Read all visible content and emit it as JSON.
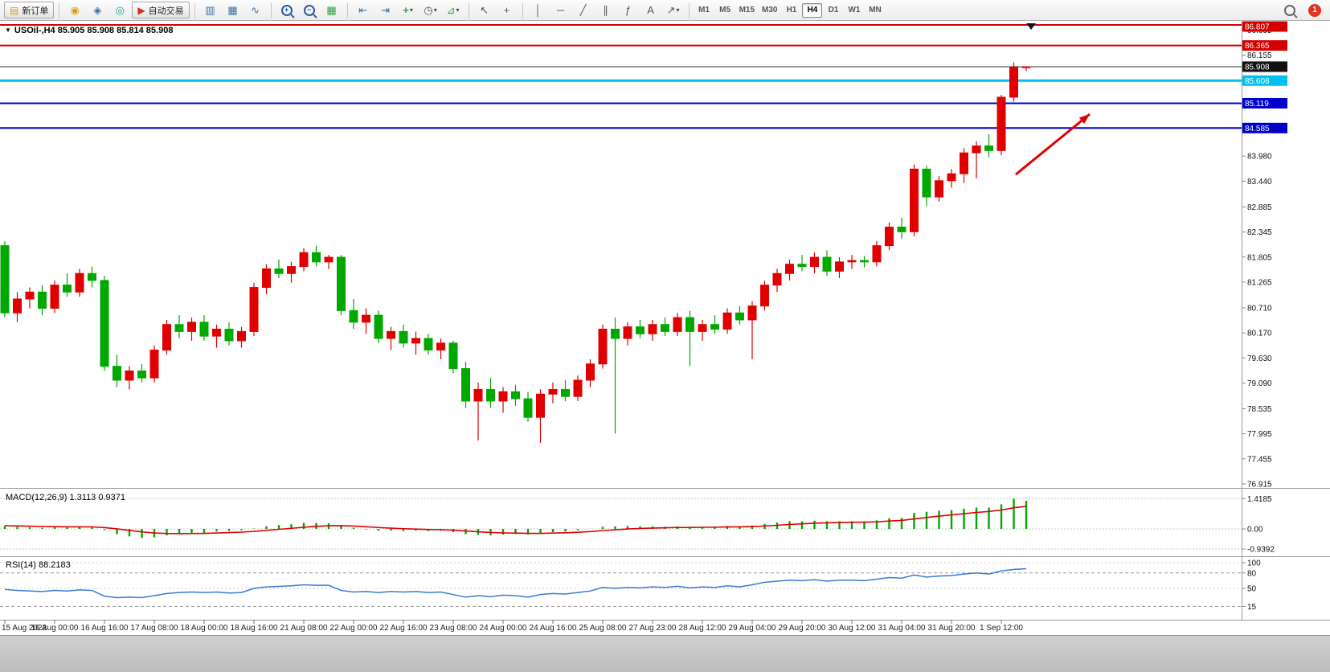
{
  "toolbar": {
    "new_order": "新订单",
    "autotrading": "自动交易",
    "timeframes": [
      "M1",
      "M5",
      "M15",
      "M30",
      "H1",
      "H4",
      "D1",
      "W1",
      "MN"
    ],
    "active_timeframe": "H4",
    "notification_count": "1"
  },
  "icons": {
    "new_order": "▤",
    "metaquotes": "◉",
    "charts_panel": "◈",
    "signals": "◎",
    "autotrading": "▶",
    "chart_bars": "▥",
    "chart_candles": "▦",
    "chart_line": "∿",
    "zoom_in": "+",
    "zoom_out": "−",
    "grid": "▦",
    "auto_scroll": "⇥",
    "chart_shift": "⇤",
    "new_chart": "+",
    "periods": "◷",
    "indicators": "⊿",
    "dropdown": "▾",
    "cursor": "↖",
    "crosshair": "+",
    "vline": "│",
    "hline": "─",
    "trendline": "╱",
    "channel": "∥",
    "fibonacci": "ƒ",
    "text_tool": "A",
    "arrows_tool": "↗",
    "marker": "▼"
  },
  "chart": {
    "symbol_title": "USOil-,H4 85.905 85.908 85.814 85.908",
    "current_price": "85.908"
  },
  "chart_data": {
    "type": "candlestick",
    "symbol": "USOil-",
    "timeframe": "H4",
    "ohlc_current": [
      85.905,
      85.908,
      85.814,
      85.908
    ],
    "ylim": [
      76.88,
      86.86
    ],
    "up_color": "#e00000",
    "down_color": "#00a800",
    "price_axis_labels": [
      "86.695",
      "86.155",
      "85.615",
      "85.075",
      "84.535",
      "83.980",
      "83.440",
      "82.885",
      "82.345",
      "81.805",
      "81.265",
      "80.710",
      "80.170",
      "79.630",
      "79.090",
      "78.535",
      "77.995",
      "77.455",
      "76.915"
    ],
    "hlines": [
      {
        "price": 86.807,
        "label": "86.807",
        "color": "#d40000",
        "width": 2
      },
      {
        "price": 86.365,
        "label": "86.365",
        "color": "#d40000",
        "width": 2
      },
      {
        "price": 85.908,
        "label": "85.908",
        "color": "#333333",
        "width": 1,
        "box": "#111111"
      },
      {
        "price": 85.608,
        "label": "85.608",
        "color": "#00c0f0",
        "width": 3
      },
      {
        "price": 85.119,
        "label": "85.119",
        "color": "#0000cc",
        "width": 2
      },
      {
        "price": 84.585,
        "label": "84.585",
        "color": "#0000cc",
        "width": 2
      }
    ],
    "candles": [
      [
        82.05,
        82.15,
        80.5,
        80.6
      ],
      [
        80.6,
        81.05,
        80.4,
        80.9
      ],
      [
        80.9,
        81.15,
        80.7,
        81.05
      ],
      [
        81.05,
        81.2,
        80.55,
        80.7
      ],
      [
        80.7,
        81.3,
        80.6,
        81.2
      ],
      [
        81.2,
        81.45,
        80.95,
        81.05
      ],
      [
        81.05,
        81.55,
        80.95,
        81.45
      ],
      [
        81.45,
        81.6,
        81.15,
        81.3
      ],
      [
        81.3,
        81.4,
        79.35,
        79.45
      ],
      [
        79.45,
        79.7,
        79.0,
        79.15
      ],
      [
        79.15,
        79.45,
        78.95,
        79.35
      ],
      [
        79.35,
        79.5,
        79.1,
        79.2
      ],
      [
        79.2,
        79.9,
        79.1,
        79.8
      ],
      [
        79.8,
        80.45,
        79.7,
        80.35
      ],
      [
        80.35,
        80.55,
        80.05,
        80.2
      ],
      [
        80.2,
        80.5,
        80.0,
        80.4
      ],
      [
        80.4,
        80.55,
        80.0,
        80.1
      ],
      [
        80.1,
        80.35,
        79.85,
        80.25
      ],
      [
        80.25,
        80.4,
        79.9,
        80.0
      ],
      [
        80.0,
        80.3,
        79.85,
        80.2
      ],
      [
        80.2,
        81.25,
        80.1,
        81.15
      ],
      [
        81.15,
        81.65,
        81.0,
        81.55
      ],
      [
        81.55,
        81.75,
        81.35,
        81.45
      ],
      [
        81.45,
        81.7,
        81.25,
        81.6
      ],
      [
        81.6,
        82.0,
        81.5,
        81.9
      ],
      [
        81.9,
        82.05,
        81.6,
        81.7
      ],
      [
        81.7,
        81.85,
        81.55,
        81.8
      ],
      [
        81.8,
        81.85,
        80.55,
        80.65
      ],
      [
        80.65,
        80.9,
        80.25,
        80.4
      ],
      [
        80.4,
        80.7,
        80.15,
        80.55
      ],
      [
        80.55,
        80.65,
        79.95,
        80.05
      ],
      [
        80.05,
        80.3,
        79.8,
        80.2
      ],
      [
        80.2,
        80.35,
        79.85,
        79.95
      ],
      [
        79.95,
        80.2,
        79.7,
        80.05
      ],
      [
        80.05,
        80.15,
        79.7,
        79.8
      ],
      [
        79.8,
        80.05,
        79.6,
        79.95
      ],
      [
        79.95,
        80.0,
        79.3,
        79.4
      ],
      [
        79.4,
        79.55,
        78.55,
        78.7
      ],
      [
        78.7,
        79.1,
        77.85,
        78.95
      ],
      [
        78.95,
        79.2,
        78.55,
        78.7
      ],
      [
        78.7,
        79.0,
        78.45,
        78.9
      ],
      [
        78.9,
        79.05,
        78.6,
        78.75
      ],
      [
        78.75,
        78.9,
        78.25,
        78.35
      ],
      [
        78.35,
        78.95,
        77.8,
        78.85
      ],
      [
        78.85,
        79.1,
        78.65,
        78.95
      ],
      [
        78.95,
        79.15,
        78.7,
        78.8
      ],
      [
        78.8,
        79.25,
        78.7,
        79.15
      ],
      [
        79.15,
        79.6,
        79.0,
        79.5
      ],
      [
        79.5,
        80.35,
        79.4,
        80.25
      ],
      [
        80.25,
        80.5,
        78.0,
        80.05
      ],
      [
        80.05,
        80.4,
        79.9,
        80.3
      ],
      [
        80.3,
        80.45,
        80.05,
        80.15
      ],
      [
        80.15,
        80.45,
        80.0,
        80.35
      ],
      [
        80.35,
        80.5,
        80.1,
        80.2
      ],
      [
        80.2,
        80.6,
        80.1,
        80.5
      ],
      [
        80.5,
        80.65,
        79.45,
        80.2
      ],
      [
        80.2,
        80.45,
        80.0,
        80.35
      ],
      [
        80.35,
        80.55,
        80.15,
        80.25
      ],
      [
        80.25,
        80.7,
        80.15,
        80.6
      ],
      [
        80.6,
        80.75,
        80.35,
        80.45
      ],
      [
        80.45,
        80.85,
        79.6,
        80.75
      ],
      [
        80.75,
        81.3,
        80.65,
        81.2
      ],
      [
        81.2,
        81.55,
        81.05,
        81.45
      ],
      [
        81.45,
        81.75,
        81.3,
        81.65
      ],
      [
        81.65,
        81.85,
        81.5,
        81.6
      ],
      [
        81.6,
        81.9,
        81.45,
        81.8
      ],
      [
        81.8,
        81.95,
        81.4,
        81.5
      ],
      [
        81.5,
        81.8,
        81.35,
        81.7
      ],
      [
        81.7,
        81.85,
        81.55,
        81.73
      ],
      [
        81.73,
        81.83,
        81.58,
        81.7
      ],
      [
        81.7,
        82.15,
        81.6,
        82.05
      ],
      [
        82.05,
        82.55,
        81.95,
        82.45
      ],
      [
        82.45,
        82.65,
        82.2,
        82.35
      ],
      [
        82.35,
        83.8,
        82.25,
        83.7
      ],
      [
        83.7,
        83.78,
        82.9,
        83.1
      ],
      [
        83.1,
        83.55,
        83.0,
        83.45
      ],
      [
        83.45,
        83.7,
        83.3,
        83.6
      ],
      [
        83.6,
        84.15,
        83.4,
        84.05
      ],
      [
        84.05,
        84.3,
        83.5,
        84.2
      ],
      [
        84.2,
        84.45,
        83.95,
        84.1
      ],
      [
        84.1,
        85.3,
        84.0,
        85.25
      ],
      [
        85.25,
        86.0,
        85.15,
        85.9
      ],
      [
        85.905,
        85.908,
        85.814,
        85.908
      ]
    ],
    "time_labels": [
      "15 Aug 2023",
      "16 Aug 00:00",
      "16 Aug 16:00",
      "17 Aug 08:00",
      "18 Aug 00:00",
      "18 Aug 16:00",
      "21 Aug 08:00",
      "22 Aug 00:00",
      "22 Aug 16:00",
      "23 Aug 08:00",
      "24 Aug 00:00",
      "24 Aug 16:00",
      "25 Aug 08:00",
      "27 Aug 23:00",
      "28 Aug 12:00",
      "29 Aug 04:00",
      "29 Aug 20:00",
      "30 Aug 12:00",
      "31 Aug 04:00",
      "31 Aug 20:00",
      "1 Sep 12:00"
    ],
    "indicators": [
      {
        "name": "MACD",
        "params": "12,26,9",
        "display": "MACD(12,26,9) 1.3113 0.9371",
        "value_macd": 1.3113,
        "value_signal": 0.9371,
        "axis_labels": [
          "1.4185",
          "0.00",
          "-0.9392"
        ],
        "histogram_color": "#00a800",
        "signal_color": "#e00000",
        "values": [
          0.15,
          0.1,
          0.08,
          0.05,
          0.08,
          0.06,
          0.1,
          0.08,
          -0.05,
          -0.25,
          -0.35,
          -0.42,
          -0.4,
          -0.3,
          -0.25,
          -0.2,
          -0.18,
          -0.12,
          -0.1,
          -0.06,
          0.02,
          0.12,
          0.18,
          0.22,
          0.28,
          0.28,
          0.26,
          0.18,
          0.05,
          -0.02,
          -0.08,
          -0.08,
          -0.1,
          -0.08,
          -0.1,
          -0.08,
          -0.15,
          -0.25,
          -0.28,
          -0.3,
          -0.26,
          -0.24,
          -0.26,
          -0.2,
          -0.15,
          -0.12,
          -0.06,
          0.0,
          0.1,
          0.12,
          0.14,
          0.12,
          0.12,
          0.1,
          0.12,
          0.08,
          0.1,
          0.1,
          0.14,
          0.12,
          0.16,
          0.24,
          0.3,
          0.36,
          0.36,
          0.38,
          0.36,
          0.36,
          0.36,
          0.34,
          0.4,
          0.5,
          0.52,
          0.75,
          0.8,
          0.85,
          0.88,
          0.95,
          1.0,
          1.0,
          1.15,
          1.4185,
          1.3113
        ]
      },
      {
        "name": "RSI",
        "params": "14",
        "display": "RSI(14) 88.2183",
        "value": 88.2183,
        "axis_labels": [
          "100",
          "80",
          "50",
          "15"
        ],
        "line_color": "#3a7bd5",
        "levels": [
          80,
          15
        ],
        "values": [
          48,
          46,
          45,
          44,
          46,
          45,
          47,
          46,
          35,
          32,
          33,
          32,
          36,
          40,
          42,
          43,
          42,
          43,
          41,
          42,
          50,
          53,
          54,
          55,
          57,
          56,
          56,
          46,
          43,
          44,
          42,
          44,
          43,
          44,
          42,
          43,
          38,
          33,
          36,
          34,
          37,
          36,
          33,
          38,
          40,
          39,
          42,
          45,
          52,
          50,
          52,
          51,
          53,
          52,
          54,
          51,
          53,
          52,
          55,
          53,
          57,
          62,
          64,
          66,
          65,
          67,
          64,
          66,
          66,
          65,
          68,
          71,
          70,
          76,
          72,
          74,
          75,
          78,
          80,
          78,
          84,
          87,
          88.2
        ]
      }
    ],
    "annotations": [
      {
        "type": "arrow",
        "from": [
          1264,
          217
        ],
        "to": [
          1356,
          142
        ],
        "color": "#e00000"
      }
    ]
  }
}
